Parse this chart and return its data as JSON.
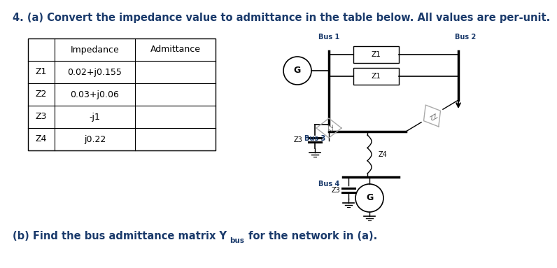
{
  "title": "4. (a) Convert the impedance value to admittance in the table below. All values are per-unit.",
  "title_color": "#1a3a6b",
  "title_fontsize": 10.5,
  "table_headers": [
    "",
    "Impedance",
    "Admittance"
  ],
  "table_rows": [
    [
      "Z1",
      "0.02+j0.155",
      ""
    ],
    [
      "Z2",
      "0.03+j0.06",
      ""
    ],
    [
      "Z3",
      "-j1",
      ""
    ],
    [
      "Z4",
      "j0.22",
      ""
    ]
  ],
  "subtitle_color": "#1a3a6b",
  "subtitle_fontsize": 10.5,
  "background_color": "#ffffff",
  "bus_label_color": "#1a3a6b",
  "bus_label_fontsize": 7.0,
  "z_label_color": "#888888",
  "circuit_label_color": "#000000"
}
